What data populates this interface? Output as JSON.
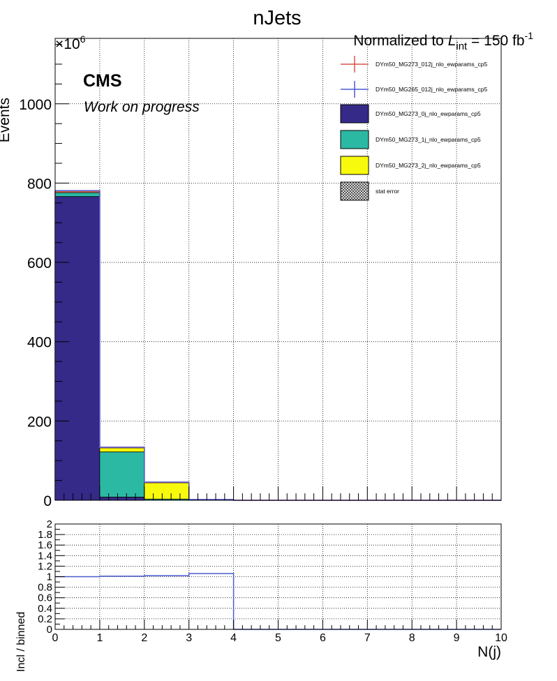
{
  "chart_data": {
    "title": "nJets",
    "lumi_prefix": "Normalized to ",
    "lumi_symbol": "L",
    "lumi_sub": "int",
    "lumi_value": " = 150 fb",
    "lumi_sup": "-1",
    "cms_label": "CMS",
    "cms_sublabel": "Work on progress",
    "multiplier_base": "×10",
    "multiplier_exp": "6",
    "main": {
      "type": "bar",
      "stacked": true,
      "ylabel": "Events",
      "xlim": [
        0,
        10
      ],
      "ylim": [
        0,
        1165
      ],
      "yticks": [
        0,
        200,
        400,
        600,
        800,
        1000
      ],
      "ytick_labels": [
        "0",
        "200",
        "400",
        "600",
        "800",
        "1000"
      ],
      "bin_edges": [
        0,
        1,
        2,
        3,
        4,
        5,
        6,
        7,
        8,
        9,
        10
      ],
      "stack": [
        {
          "name": "DYm50_MG273_0j_nlo_ewparams_cp5",
          "color": "#352a87",
          "values": [
            766,
            8,
            0,
            0,
            0,
            0,
            0,
            0,
            0,
            0
          ]
        },
        {
          "name": "DYm50_MG273_1j_nlo_ewparams_cp5",
          "color": "#2cb9a4",
          "values": [
            10,
            114,
            3,
            0,
            0,
            0,
            0,
            0,
            0,
            0
          ]
        },
        {
          "name": "DYm50_MG273_2j_nlo_ewparams_cp5",
          "color": "#f8fa0d",
          "values": [
            4,
            10,
            41,
            2,
            0,
            0,
            0,
            0,
            0,
            0
          ]
        }
      ],
      "overlays": [
        {
          "name": "DYm50_MG273_012j_nlo_ewparams_cp5",
          "color": "#d9534f",
          "values": [
            778,
            133,
            45,
            2,
            0,
            0,
            0,
            0,
            0,
            0
          ]
        },
        {
          "name": "DYm50_MG265_012j_nlo_ewparams_cp5",
          "color": "#4b5bd0",
          "values": [
            781,
            134,
            46,
            2,
            0,
            0,
            0,
            0,
            0,
            0
          ]
        }
      ],
      "stat_error_label": "stat error",
      "grid": true,
      "legend_position": "top-right"
    },
    "ratio": {
      "type": "line",
      "ylabel": "Incl / binned",
      "xlabel": "N(j)",
      "xlim": [
        0,
        10
      ],
      "ylim": [
        0,
        2
      ],
      "yticks": [
        0,
        0.2,
        0.4,
        0.6,
        0.8,
        1,
        1.2,
        1.4,
        1.6,
        1.8,
        2
      ],
      "ytick_labels": [
        "0",
        "0.2",
        "0.4",
        "0.6",
        "0.8",
        "1",
        "1.2",
        "1.4",
        "1.6",
        "1.8",
        "2"
      ],
      "xticks": [
        0,
        1,
        2,
        3,
        4,
        5,
        6,
        7,
        8,
        9,
        10
      ],
      "xtick_labels": [
        "0",
        "1",
        "2",
        "3",
        "4",
        "5",
        "6",
        "7",
        "8",
        "9",
        "10"
      ],
      "values": [
        1.0,
        1.01,
        1.02,
        1.06,
        0,
        0,
        0,
        0,
        0,
        0
      ],
      "color": "#4b5bd0"
    }
  },
  "colors": {
    "hatch": "#333333"
  }
}
